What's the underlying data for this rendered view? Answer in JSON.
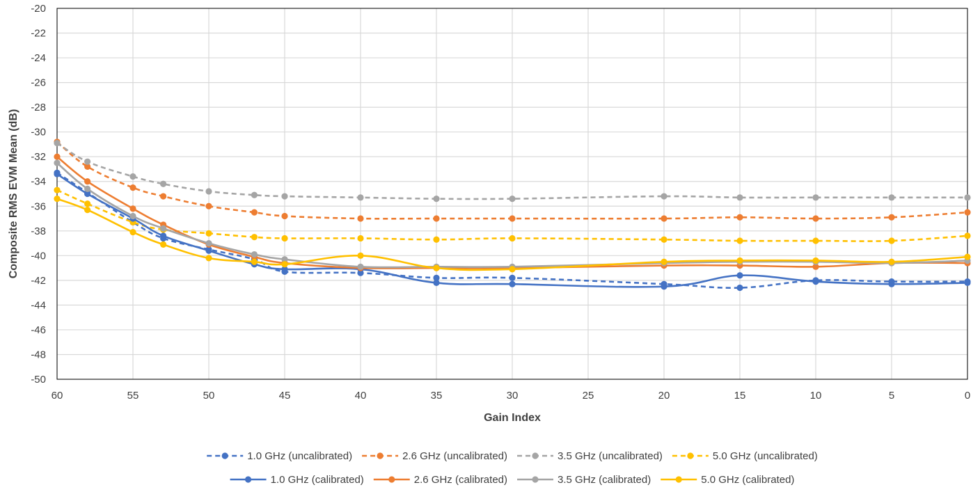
{
  "chart_data": {
    "type": "line",
    "title": "",
    "xlabel": "Gain Index",
    "ylabel": "Composite RMS EVM Mean (dB)",
    "xlim": [
      60,
      0
    ],
    "x_reversed": true,
    "xticks": [
      "60",
      "55",
      "50",
      "45",
      "40",
      "35",
      "30",
      "25",
      "20",
      "15",
      "10",
      "5",
      "0"
    ],
    "ylim": [
      -50,
      -20
    ],
    "yticks": [
      "-20",
      "-22",
      "-24",
      "-26",
      "-28",
      "-30",
      "-32",
      "-34",
      "-36",
      "-38",
      "-40",
      "-42",
      "-44",
      "-46",
      "-48",
      "-50"
    ],
    "grid": true,
    "legend_position": "bottom",
    "x": [
      60,
      58,
      55,
      53,
      50,
      47,
      45,
      40,
      35,
      30,
      20,
      15,
      10,
      5,
      0
    ],
    "series": [
      {
        "name": "1.0 GHz (uncalibrated)",
        "color": "#4472C4",
        "dash": true,
        "values": [
          -33.3,
          -34.9,
          -37.3,
          -38.6,
          -39.5,
          -40.3,
          -41.3,
          -41.4,
          -41.8,
          -41.8,
          -42.3,
          -42.6,
          -42.0,
          -42.1,
          -42.1
        ]
      },
      {
        "name": "2.6 GHz (uncalibrated)",
        "color": "#ED7D31",
        "dash": true,
        "values": [
          -30.8,
          -32.8,
          -34.5,
          -35.2,
          -36.0,
          -36.5,
          -36.8,
          -37.0,
          -37.0,
          -37.0,
          -37.0,
          -36.9,
          -37.0,
          -36.9,
          -36.5
        ]
      },
      {
        "name": "3.5 GHz (uncalibrated)",
        "color": "#A5A5A5",
        "dash": true,
        "values": [
          -30.9,
          -32.4,
          -33.6,
          -34.2,
          -34.8,
          -35.1,
          -35.2,
          -35.3,
          -35.4,
          -35.4,
          -35.2,
          -35.3,
          -35.3,
          -35.3,
          -35.3
        ]
      },
      {
        "name": "5.0 GHz (uncalibrated)",
        "color": "#FFC000",
        "dash": true,
        "values": [
          -34.7,
          -35.8,
          -37.3,
          -37.9,
          -38.2,
          -38.5,
          -38.6,
          -38.6,
          -38.7,
          -38.6,
          -38.7,
          -38.8,
          -38.8,
          -38.8,
          -38.4
        ]
      },
      {
        "name": "1.0 GHz (calibrated)",
        "color": "#4472C4",
        "dash": false,
        "values": [
          -33.4,
          -35.0,
          -37.0,
          -38.4,
          -39.6,
          -40.7,
          -41.1,
          -41.1,
          -42.2,
          -42.3,
          -42.5,
          -41.6,
          -42.1,
          -42.3,
          -42.2
        ]
      },
      {
        "name": "2.6 GHz (calibrated)",
        "color": "#ED7D31",
        "dash": false,
        "values": [
          -32.0,
          -34.0,
          -36.2,
          -37.5,
          -39.1,
          -40.1,
          -40.6,
          -41.0,
          -41.0,
          -41.0,
          -40.8,
          -40.8,
          -40.9,
          -40.6,
          -40.6
        ]
      },
      {
        "name": "3.5 GHz (calibrated)",
        "color": "#A5A5A5",
        "dash": false,
        "values": [
          -32.5,
          -34.6,
          -36.8,
          -37.8,
          -39.0,
          -39.9,
          -40.3,
          -40.9,
          -40.9,
          -40.9,
          -40.6,
          -40.5,
          -40.5,
          -40.6,
          -40.4
        ]
      },
      {
        "name": "5.0 GHz (calibrated)",
        "color": "#FFC000",
        "dash": false,
        "values": [
          -35.4,
          -36.3,
          -38.1,
          -39.1,
          -40.2,
          -40.5,
          -40.7,
          -40.0,
          -41.0,
          -41.1,
          -40.5,
          -40.4,
          -40.4,
          -40.5,
          -40.1
        ]
      }
    ]
  }
}
